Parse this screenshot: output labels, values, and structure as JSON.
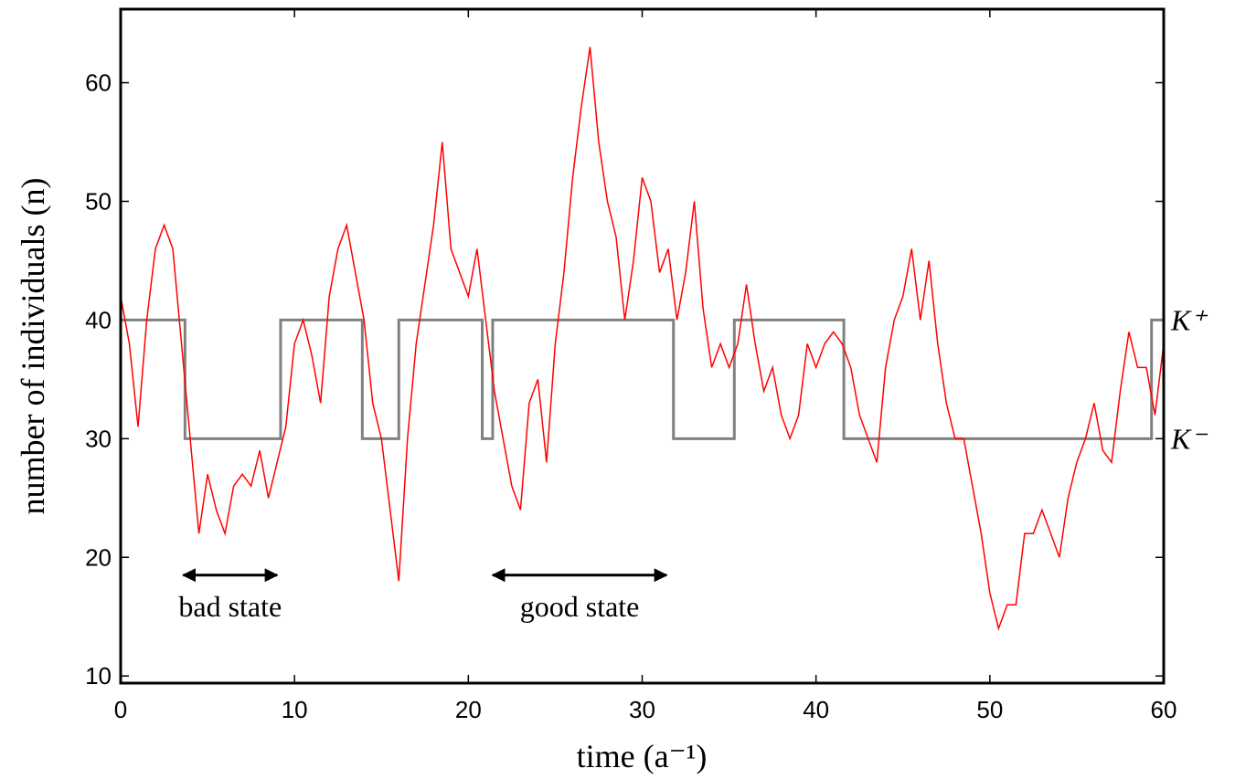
{
  "chart_data": {
    "type": "line",
    "xlabel": "time (a⁻¹)",
    "ylabel": "number of individuals (n)",
    "xlim": [
      0,
      60
    ],
    "ylim": [
      9.4,
      66.2
    ],
    "xticks": [
      0,
      10,
      20,
      30,
      40,
      50,
      60
    ],
    "yticks": [
      10,
      20,
      30,
      40,
      50,
      60
    ],
    "series": [
      {
        "name": "n",
        "color": "#ff0000",
        "step": false,
        "x": [
          0,
          0.5,
          1,
          1.5,
          2,
          2.5,
          3,
          3.5,
          4,
          4.5,
          5,
          5.5,
          6,
          6.5,
          7,
          7.5,
          8,
          8.5,
          9,
          9.5,
          10,
          10.5,
          11,
          11.5,
          12,
          12.5,
          13,
          13.5,
          14,
          14.5,
          15,
          15.5,
          16,
          16.5,
          17,
          17.5,
          18,
          18.5,
          19,
          19.5,
          20,
          20.5,
          21,
          21.5,
          22,
          22.5,
          23,
          23.5,
          24,
          24.5,
          25,
          25.5,
          26,
          26.5,
          27,
          27.5,
          28,
          28.5,
          29,
          29.5,
          30,
          30.5,
          31,
          31.5,
          32,
          32.5,
          33,
          33.5,
          34,
          34.5,
          35,
          35.5,
          36,
          36.5,
          37,
          37.5,
          38,
          38.5,
          39,
          39.5,
          40,
          40.5,
          41,
          41.5,
          42,
          42.5,
          43,
          43.5,
          44,
          44.5,
          45,
          45.5,
          46,
          46.5,
          47,
          47.5,
          48,
          48.5,
          49,
          49.5,
          50,
          50.5,
          51,
          51.5,
          52,
          52.5,
          53,
          53.5,
          54,
          54.5,
          55,
          55.5,
          56,
          56.5,
          57,
          57.5,
          58,
          58.5,
          59,
          59.5,
          60
        ],
        "values": [
          42,
          38,
          31,
          40,
          46,
          48,
          46,
          38,
          30,
          22,
          27,
          24,
          22,
          26,
          27,
          26,
          29,
          25,
          28,
          31,
          38,
          40,
          37,
          33,
          42,
          46,
          48,
          44,
          40,
          33,
          30,
          24,
          18,
          30,
          38,
          43,
          48,
          55,
          46,
          44,
          42,
          46,
          40,
          34,
          30,
          26,
          24,
          33,
          35,
          28,
          38,
          44,
          52,
          58,
          63,
          55,
          50,
          47,
          40,
          45,
          52,
          50,
          44,
          46,
          40,
          44,
          50,
          41,
          36,
          38,
          36,
          38,
          43,
          38,
          34,
          36,
          32,
          30,
          32,
          38,
          36,
          38,
          39,
          38,
          36,
          32,
          30,
          28,
          36,
          40,
          42,
          46,
          40,
          45,
          38,
          33,
          30,
          30,
          26,
          22,
          17,
          14,
          16,
          16,
          22,
          22,
          24,
          22,
          20,
          25,
          28,
          30,
          33,
          29,
          28,
          34,
          39,
          36,
          36,
          32,
          38
        ]
      },
      {
        "name": "K",
        "color": "#808080",
        "step": true,
        "x": [
          0,
          3.7,
          9.2,
          13.9,
          16.0,
          20.8,
          21.4,
          31.8,
          35.3,
          41.6,
          59.3,
          60
        ],
        "values": [
          40,
          30,
          40,
          30,
          40,
          30,
          40,
          30,
          40,
          30,
          40,
          40
        ]
      }
    ],
    "annotations": [
      {
        "text": "K⁺",
        "x": 60,
        "y": 40
      },
      {
        "text": "K⁻",
        "x": 60,
        "y": 30
      },
      {
        "text": "bad state",
        "x": [
          3.6,
          9.0
        ],
        "y": 18.5
      },
      {
        "text": "good state",
        "x": [
          21.4,
          31.4
        ],
        "y": 18.5
      }
    ]
  }
}
